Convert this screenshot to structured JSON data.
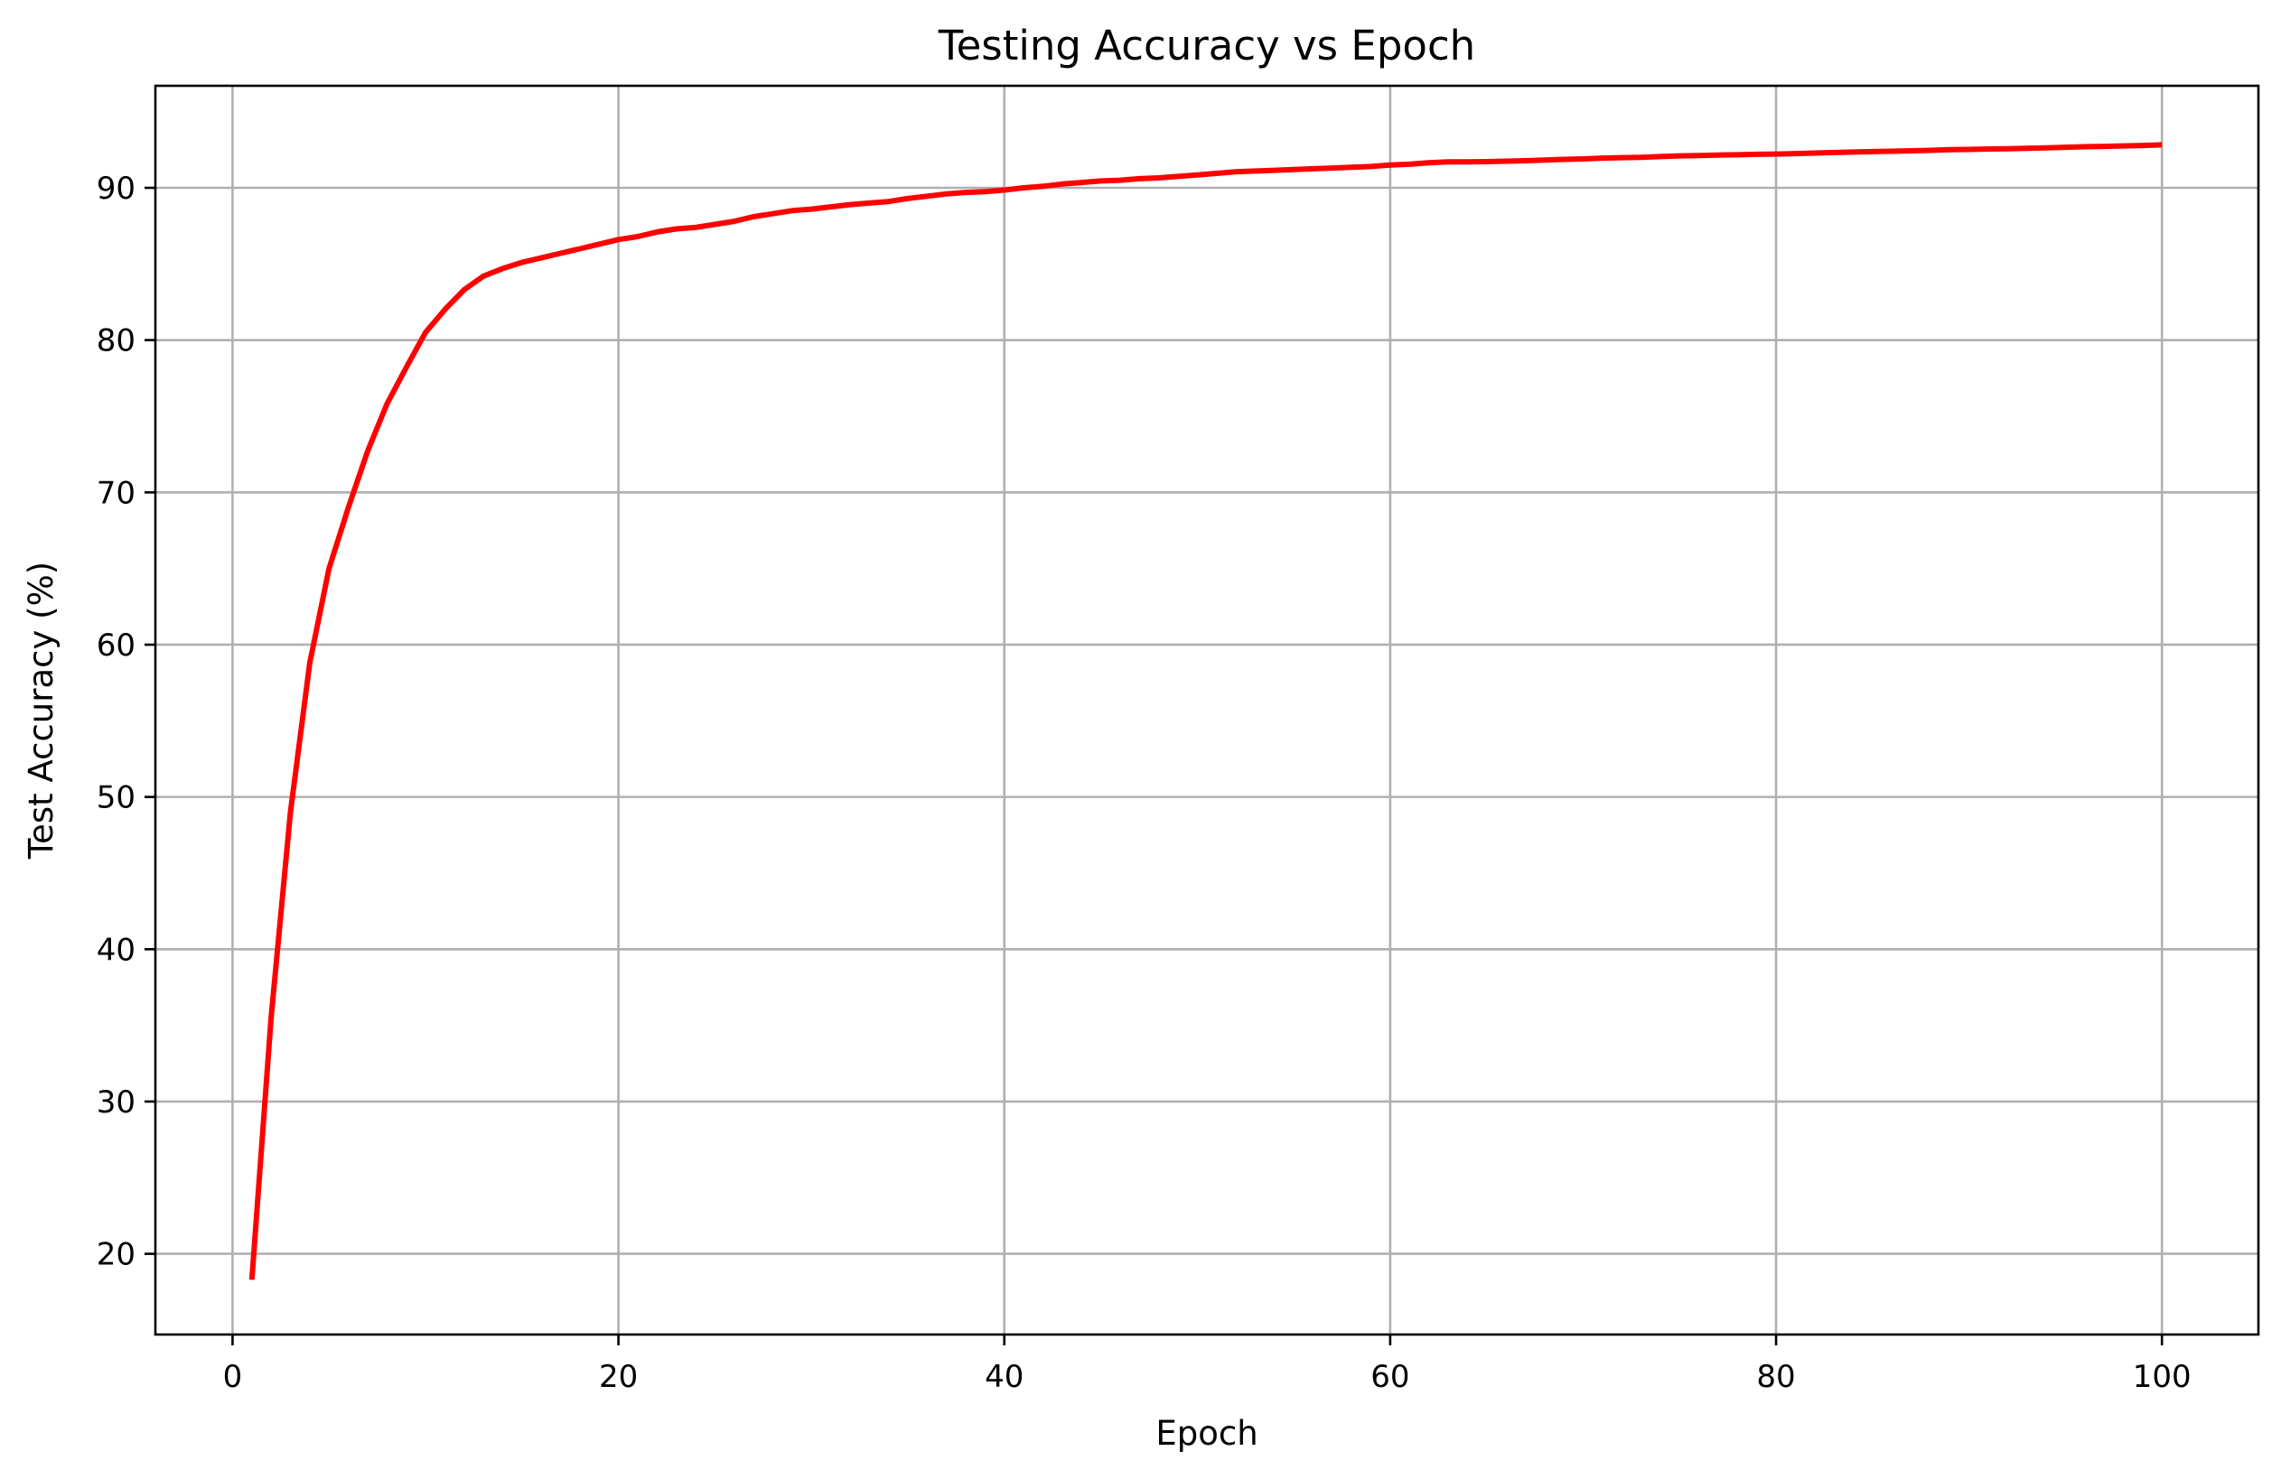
{
  "chart_data": {
    "type": "line",
    "title": "Testing Accuracy vs Epoch",
    "xlabel": "Epoch",
    "ylabel": "Test Accuracy (%)",
    "xlim": [
      -4,
      105
    ],
    "ylim": [
      14.7,
      96.7
    ],
    "xticks": [
      0,
      20,
      40,
      60,
      80,
      100
    ],
    "yticks": [
      20,
      30,
      40,
      50,
      60,
      70,
      80,
      90
    ],
    "grid": true,
    "series": [
      {
        "color": "#ff0000",
        "x": [
          1,
          2,
          3,
          4,
          5,
          6,
          7,
          8,
          9,
          10,
          11,
          12,
          13,
          14,
          15,
          16,
          17,
          18,
          19,
          20,
          21,
          22,
          23,
          24,
          25,
          26,
          27,
          28,
          29,
          30,
          31,
          32,
          33,
          34,
          35,
          36,
          37,
          38,
          39,
          40,
          41,
          42,
          43,
          44,
          45,
          46,
          47,
          48,
          49,
          50,
          51,
          52,
          53,
          54,
          55,
          56,
          57,
          58,
          59,
          60,
          61,
          62,
          63,
          64,
          65,
          66,
          67,
          68,
          69,
          70,
          71,
          72,
          73,
          74,
          75,
          76,
          77,
          78,
          79,
          80,
          81,
          82,
          83,
          84,
          85,
          86,
          87,
          88,
          89,
          90,
          91,
          92,
          93,
          94,
          95,
          96,
          97,
          98,
          99,
          100
        ],
        "values": [
          18.3,
          35.5,
          49.0,
          58.8,
          65.0,
          69.0,
          72.7,
          75.8,
          78.2,
          80.5,
          82.0,
          83.3,
          84.2,
          84.7,
          85.1,
          85.4,
          85.7,
          86.0,
          86.3,
          86.6,
          86.8,
          87.1,
          87.3,
          87.4,
          87.6,
          87.8,
          88.1,
          88.3,
          88.5,
          88.6,
          88.75,
          88.9,
          89.0,
          89.1,
          89.3,
          89.45,
          89.6,
          89.7,
          89.75,
          89.85,
          90.0,
          90.1,
          90.25,
          90.35,
          90.45,
          90.5,
          90.6,
          90.65,
          90.75,
          90.85,
          90.95,
          91.05,
          91.1,
          91.15,
          91.2,
          91.25,
          91.3,
          91.35,
          91.4,
          91.5,
          91.55,
          91.65,
          91.7,
          91.7,
          91.72,
          91.75,
          91.78,
          91.82,
          91.87,
          91.9,
          91.95,
          91.98,
          92.0,
          92.05,
          92.1,
          92.12,
          92.15,
          92.17,
          92.2,
          92.22,
          92.25,
          92.28,
          92.32,
          92.35,
          92.38,
          92.4,
          92.43,
          92.46,
          92.5,
          92.52,
          92.55,
          92.57,
          92.6,
          92.62,
          92.66,
          92.7,
          92.72,
          92.75,
          92.78,
          92.82
        ]
      }
    ]
  }
}
